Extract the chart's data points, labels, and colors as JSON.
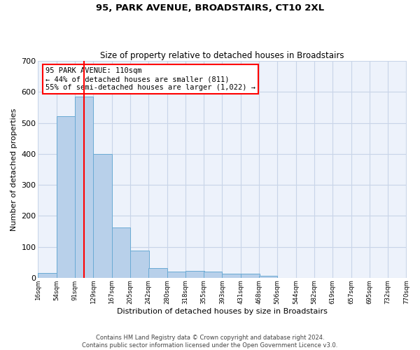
{
  "title1": "95, PARK AVENUE, BROADSTAIRS, CT10 2XL",
  "title2": "Size of property relative to detached houses in Broadstairs",
  "xlabel": "Distribution of detached houses by size in Broadstairs",
  "ylabel": "Number of detached properties",
  "bar_color": "#b8d0ea",
  "bar_edge_color": "#6aaad4",
  "grid_color": "#c8d4e8",
  "background_color": "#edf2fb",
  "annotation_text": "95 PARK AVENUE: 110sqm\n← 44% of detached houses are smaller (811)\n55% of semi-detached houses are larger (1,022) →",
  "annotation_box_color": "white",
  "annotation_box_edge_color": "red",
  "property_line_color": "red",
  "property_line_x": 110,
  "bin_edges": [
    16,
    54,
    91,
    129,
    167,
    205,
    242,
    280,
    318,
    355,
    393,
    431,
    468,
    506,
    544,
    582,
    619,
    657,
    695,
    732,
    770
  ],
  "bar_heights": [
    15,
    522,
    585,
    400,
    163,
    88,
    32,
    20,
    22,
    20,
    12,
    13,
    6,
    0,
    0,
    0,
    0,
    0,
    0,
    0
  ],
  "tick_labels": [
    "16sqm",
    "54sqm",
    "91sqm",
    "129sqm",
    "167sqm",
    "205sqm",
    "242sqm",
    "280sqm",
    "318sqm",
    "355sqm",
    "393sqm",
    "431sqm",
    "468sqm",
    "506sqm",
    "544sqm",
    "582sqm",
    "619sqm",
    "657sqm",
    "695sqm",
    "732sqm",
    "770sqm"
  ],
  "footnote1": "Contains HM Land Registry data © Crown copyright and database right 2024.",
  "footnote2": "Contains public sector information licensed under the Open Government Licence v3.0.",
  "ylim": [
    0,
    700
  ],
  "yticks": [
    0,
    100,
    200,
    300,
    400,
    500,
    600,
    700
  ]
}
